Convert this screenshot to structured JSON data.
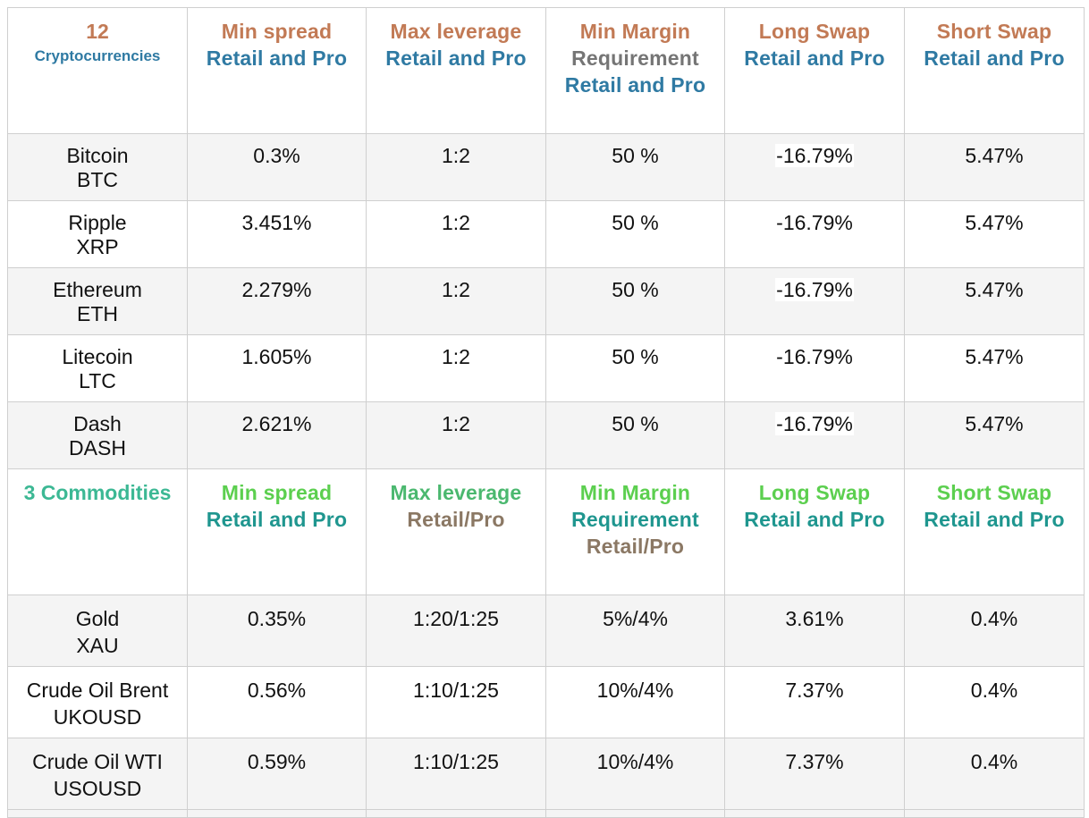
{
  "crypto_header": {
    "count": "12",
    "label": "Cryptocurrencies",
    "min_spread": "Min spread",
    "max_leverage": "Max leverage",
    "min_margin_1": "Min Margin",
    "min_margin_2": "Requirement",
    "long_swap": "Long Swap",
    "short_swap": "Short Swap",
    "retail_pro": "Retail and Pro"
  },
  "crypto_rows": [
    {
      "name": "Bitcoin",
      "ticker": "BTC",
      "spread": "0.3%",
      "leverage": "1:2",
      "margin": "50 %",
      "long_swap": "-16.79%",
      "short_swap": "5.47%"
    },
    {
      "name": "Ripple",
      "ticker": "XRP",
      "spread": "3.451%",
      "leverage": "1:2",
      "margin": "50 %",
      "long_swap": "-16.79%",
      "short_swap": "5.47%"
    },
    {
      "name": "Ethereum",
      "ticker": "ETH",
      "spread": "2.279%",
      "leverage": "1:2",
      "margin": "50 %",
      "long_swap": "-16.79%",
      "short_swap": "5.47%"
    },
    {
      "name": "Litecoin",
      "ticker": "LTC",
      "spread": "1.605%",
      "leverage": "1:2",
      "margin": "50 %",
      "long_swap": "-16.79%",
      "short_swap": "5.47%"
    },
    {
      "name": "Dash",
      "ticker": "DASH",
      "spread": "2.621%",
      "leverage": "1:2",
      "margin": "50 %",
      "long_swap": "-16.79%",
      "short_swap": "5.47%"
    }
  ],
  "commodity_header": {
    "label": "3 Commodities",
    "min_spread": "Min spread",
    "max_leverage": "Max leverage",
    "min_margin": "Min Margin",
    "requirement": "Requirement",
    "long_swap": "Long Swap",
    "short_swap": "Short Swap",
    "retail_pro": "Retail and Pro",
    "retail_slash_pro": "Retail/Pro"
  },
  "commodity_rows": [
    {
      "name": "Gold",
      "ticker": "XAU",
      "spread": "0.35%",
      "leverage": "1:20/1:25",
      "margin": "5%/4%",
      "long_swap": "3.61%",
      "short_swap": "0.4%"
    },
    {
      "name": "Crude Oil Brent",
      "ticker": "UKOUSD",
      "spread": "0.56%",
      "leverage": "1:10/1:25",
      "margin": "10%/4%",
      "long_swap": "7.37%",
      "short_swap": "0.4%"
    },
    {
      "name": "Crude Oil WTI",
      "ticker": "USOUSD",
      "spread": "0.59%",
      "leverage": "1:10/1:25",
      "margin": "10%/4%",
      "long_swap": "7.37%",
      "short_swap": "0.4%"
    }
  ]
}
